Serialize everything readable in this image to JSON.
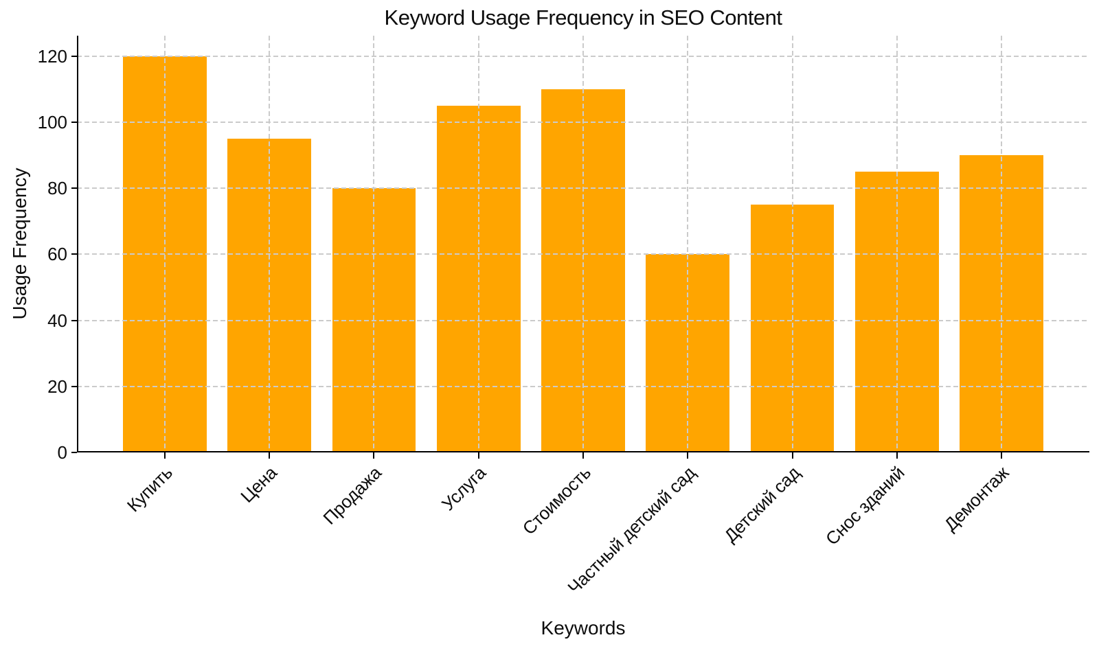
{
  "chart_data": {
    "type": "bar",
    "title": "Keyword Usage Frequency in SEO Content",
    "xlabel": "Keywords",
    "ylabel": "Usage Frequency",
    "categories": [
      "Купить",
      "Цена",
      "Продажа",
      "Услуга",
      "Стоимость",
      "Частный детский сад",
      "Детский сад",
      "Снос зданий",
      "Демонтаж"
    ],
    "values": [
      120,
      95,
      80,
      105,
      110,
      60,
      75,
      85,
      90
    ],
    "y_ticks": [
      0,
      20,
      40,
      60,
      80,
      100,
      120
    ],
    "ylim": [
      0,
      126.2
    ],
    "x_tick_rotation_deg": 45,
    "bar_color": "#FFA500",
    "grid": "dashed x and y gridlines, drawn above bars",
    "grid_color": "#cbcbcb",
    "axis_color": "#000000",
    "background_color": "#ffffff",
    "legend": "none"
  }
}
